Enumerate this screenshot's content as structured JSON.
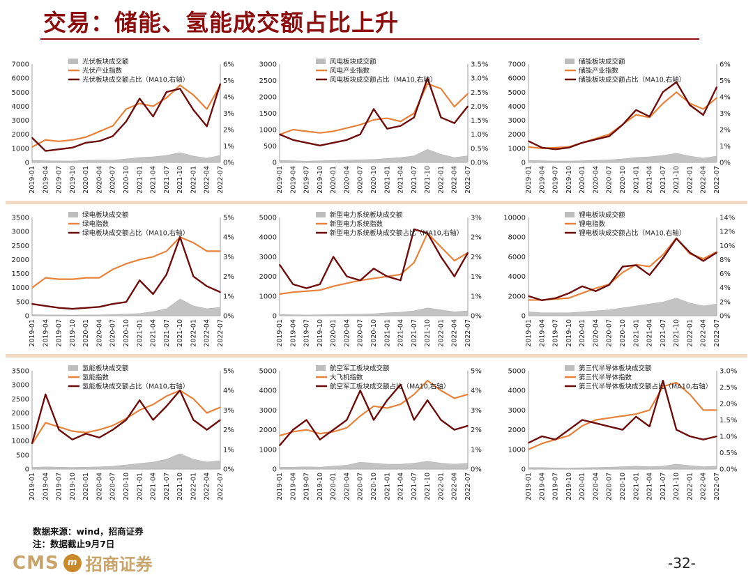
{
  "page": {
    "title": "交易：储能、氢能成交额占比上升",
    "source": "数据来源：wind，招商证券",
    "note": "注：数据截止9月7日",
    "logo_text": "CMS",
    "logo_badge": "m",
    "logo_cn": "招商证券",
    "page_number": "-32-"
  },
  "colors": {
    "title": "#8b0d0d",
    "area": "#bdbdbd",
    "index": "#e8823a",
    "ratio": "#6e0b0b",
    "separator": "#f3d9c2"
  },
  "x_tick_labels": [
    "2019-01",
    "2019-04",
    "2019-07",
    "2019-10",
    "2020-01",
    "2020-04",
    "2020-07",
    "2020-10",
    "2021-01",
    "2021-04",
    "2021-07",
    "2021-10",
    "2022-01",
    "2022-04",
    "2022-07"
  ],
  "chart_data": [
    {
      "type": "line",
      "legend": [
        "光伏板块成交额",
        "光伏产业指数",
        "光伏板块成交额占比（MA10,右轴）"
      ],
      "ylim": [
        0,
        7000
      ],
      "yticks": [
        0,
        1000,
        2000,
        3000,
        4000,
        5000,
        6000,
        7000
      ],
      "ytick_labels": [
        "0",
        "1000",
        "2000",
        "3000",
        "4000",
        "5000",
        "6000",
        "7000"
      ],
      "y2lim": [
        0,
        6
      ],
      "y2ticks": [
        0,
        1,
        2,
        3,
        4,
        5,
        6
      ],
      "y2tick_labels": [
        "0%",
        "1%",
        "2%",
        "3%",
        "4%",
        "5%",
        "6%"
      ],
      "area_values": [
        150,
        120,
        110,
        100,
        150,
        170,
        160,
        250,
        350,
        400,
        500,
        700,
        450,
        300,
        500
      ],
      "index_values": [
        1100,
        1600,
        1500,
        1600,
        1800,
        2200,
        2600,
        3800,
        4200,
        4000,
        4600,
        5500,
        4800,
        3800,
        5500
      ],
      "ratio_values": [
        1.5,
        0.7,
        0.8,
        0.9,
        1.2,
        1.3,
        1.6,
        2.5,
        3.9,
        2.8,
        4.3,
        4.5,
        3.2,
        2.2,
        4.8
      ]
    },
    {
      "type": "line",
      "legend": [
        "风电板块成交额",
        "风电产业指数",
        "风电板块成交额占比（MA10,右轴）"
      ],
      "ylim": [
        0,
        3000
      ],
      "yticks": [
        0,
        500,
        1000,
        1500,
        2000,
        2500,
        3000
      ],
      "ytick_labels": [
        "0",
        "500",
        "1000",
        "1500",
        "2000",
        "2500",
        "3000"
      ],
      "y2lim": [
        0,
        3.5
      ],
      "y2ticks": [
        0,
        0.5,
        1,
        1.5,
        2,
        2.5,
        3,
        3.5
      ],
      "y2tick_labels": [
        "0.0%",
        "0.5%",
        "1.0%",
        "1.5%",
        "2.0%",
        "2.5%",
        "3.0%",
        "3.5%"
      ],
      "area_values": [
        60,
        50,
        40,
        50,
        60,
        70,
        80,
        90,
        120,
        150,
        200,
        400,
        250,
        150,
        200
      ],
      "index_values": [
        850,
        1000,
        950,
        900,
        950,
        1050,
        1150,
        1300,
        1350,
        1250,
        1500,
        2400,
        2250,
        1700,
        2100
      ],
      "ratio_values": [
        1.0,
        0.8,
        0.7,
        0.6,
        0.7,
        0.8,
        1.0,
        1.9,
        1.2,
        1.3,
        1.6,
        3.0,
        1.6,
        1.4,
        2.0
      ]
    },
    {
      "type": "line",
      "legend": [
        "储能板块成交额",
        "储能产业指数",
        "储能板块成交额占比（MA10,右轴）"
      ],
      "ylim": [
        0,
        7000
      ],
      "yticks": [
        0,
        1000,
        2000,
        3000,
        4000,
        5000,
        6000,
        7000
      ],
      "ytick_labels": [
        "0",
        "1000",
        "2000",
        "3000",
        "4000",
        "5000",
        "6000",
        "7000"
      ],
      "y2lim": [
        0,
        6
      ],
      "y2ticks": [
        0,
        1,
        2,
        3,
        4,
        5,
        6
      ],
      "y2tick_labels": [
        "0%",
        "1%",
        "2%",
        "3%",
        "4%",
        "5%",
        "6%"
      ],
      "area_values": [
        150,
        120,
        100,
        100,
        120,
        150,
        180,
        250,
        350,
        400,
        500,
        650,
        450,
        300,
        450
      ],
      "index_values": [
        1100,
        1000,
        1050,
        1100,
        1400,
        1700,
        2000,
        2700,
        3400,
        3200,
        4200,
        5000,
        4200,
        3800,
        4600
      ],
      "ratio_values": [
        1.3,
        0.9,
        0.8,
        0.9,
        1.2,
        1.4,
        1.6,
        2.3,
        3.2,
        2.8,
        4.3,
        4.9,
        3.5,
        2.9,
        4.6
      ]
    },
    {
      "type": "line",
      "legend": [
        "绿电板块成交额",
        "绿电指数",
        "绿电板块成交额占比（MA10,右轴）"
      ],
      "ylim": [
        0,
        3500
      ],
      "yticks": [
        0,
        500,
        1000,
        1500,
        2000,
        2500,
        3000,
        3500
      ],
      "ytick_labels": [
        "0",
        "500",
        "1000",
        "1500",
        "2000",
        "2500",
        "3000",
        "3500"
      ],
      "y2lim": [
        0,
        5
      ],
      "y2ticks": [
        0,
        1,
        2,
        3,
        4,
        5
      ],
      "y2tick_labels": [
        "0%",
        "1%",
        "2%",
        "3%",
        "4%",
        "5%"
      ],
      "area_values": [
        40,
        30,
        30,
        25,
        30,
        30,
        40,
        60,
        80,
        150,
        250,
        600,
        350,
        250,
        300
      ],
      "index_values": [
        1000,
        1350,
        1300,
        1300,
        1350,
        1350,
        1650,
        1850,
        2000,
        2100,
        2300,
        2800,
        2600,
        2300,
        2300
      ],
      "ratio_values": [
        0.6,
        0.5,
        0.4,
        0.35,
        0.4,
        0.45,
        0.6,
        0.7,
        1.8,
        1.1,
        2.1,
        4.0,
        2.0,
        1.5,
        1.2
      ]
    },
    {
      "type": "line",
      "legend": [
        "新型电力系统板块成交额",
        "新型电力系统指数",
        "新型电力系统板块成交额占比（MA10,右轴）"
      ],
      "ylim": [
        0,
        5000
      ],
      "yticks": [
        0,
        1000,
        2000,
        3000,
        4000,
        5000
      ],
      "ytick_labels": [
        "0",
        "1000",
        "2000",
        "3000",
        "4000",
        "5000"
      ],
      "y2lim": [
        0,
        2.5
      ],
      "y2ticks": [
        0,
        0.5,
        1,
        1.5,
        2,
        2.5
      ],
      "y2tick_labels": [
        "0%",
        "1%",
        "1%",
        "2%",
        "2%",
        "3%"
      ],
      "area_values": [
        60,
        50,
        40,
        50,
        60,
        70,
        80,
        100,
        150,
        180,
        250,
        400,
        300,
        200,
        250
      ],
      "index_values": [
        1100,
        1200,
        1250,
        1300,
        1500,
        1650,
        1800,
        1900,
        2000,
        2100,
        2700,
        4200,
        3500,
        2800,
        3200
      ],
      "ratio_values": [
        1.3,
        0.8,
        0.7,
        0.8,
        1.5,
        1.0,
        0.9,
        1.2,
        1.0,
        0.9,
        2.2,
        2.1,
        1.5,
        1.0,
        1.6
      ]
    },
    {
      "type": "line",
      "legend": [
        "锂电板块成交额",
        "锂电指数",
        "锂电板块成交额占比（MA10,右轴）"
      ],
      "ylim": [
        0,
        10000
      ],
      "yticks": [
        0,
        2000,
        4000,
        6000,
        8000,
        10000
      ],
      "ytick_labels": [
        "0",
        "2000",
        "4000",
        "6000",
        "8000",
        "10000"
      ],
      "y2lim": [
        0,
        14
      ],
      "y2ticks": [
        0,
        2,
        4,
        6,
        8,
        10,
        12,
        14
      ],
      "y2tick_labels": [
        "0%",
        "2%",
        "4%",
        "6%",
        "8%",
        "10%",
        "12%",
        "14%"
      ],
      "area_values": [
        400,
        300,
        300,
        300,
        400,
        500,
        600,
        800,
        1000,
        1200,
        1400,
        1800,
        1300,
        1000,
        1200
      ],
      "index_values": [
        1600,
        1600,
        1700,
        1800,
        2300,
        2800,
        3200,
        4400,
        5200,
        5000,
        6200,
        7900,
        6300,
        5800,
        6500
      ],
      "ratio_values": [
        2.8,
        2.2,
        2.5,
        3.2,
        4.2,
        3.5,
        4.4,
        7.0,
        7.2,
        5.8,
        8.2,
        11.0,
        9.0,
        7.8,
        9.0
      ]
    },
    {
      "type": "line",
      "legend": [
        "氢能板块成交额",
        "氢能指数",
        "氢能板块成交额占比（MA10,右轴）"
      ],
      "ylim": [
        0,
        3500
      ],
      "yticks": [
        0,
        500,
        1000,
        1500,
        2000,
        2500,
        3000,
        3500
      ],
      "ytick_labels": [
        "0",
        "500",
        "1000",
        "1500",
        "2000",
        "2500",
        "3000",
        "3500"
      ],
      "y2lim": [
        0,
        5
      ],
      "y2ticks": [
        0,
        1,
        2,
        3,
        4,
        5
      ],
      "y2tick_labels": [
        "0%",
        "1%",
        "2%",
        "3%",
        "4%",
        "5%"
      ],
      "area_values": [
        60,
        80,
        70,
        60,
        70,
        80,
        100,
        150,
        200,
        250,
        350,
        550,
        350,
        250,
        300
      ],
      "index_values": [
        900,
        1650,
        1500,
        1350,
        1300,
        1400,
        1550,
        1800,
        2100,
        2300,
        2600,
        2800,
        2500,
        2000,
        2200
      ],
      "ratio_values": [
        1.3,
        3.8,
        2.0,
        1.5,
        1.8,
        1.6,
        2.0,
        2.5,
        3.5,
        2.5,
        3.2,
        4.0,
        2.5,
        2.0,
        2.5
      ]
    },
    {
      "type": "line",
      "legend": [
        "航空军工板块成交额",
        "大飞机指数",
        "航空军工板块成交额占比（MA10,右轴）"
      ],
      "ylim": [
        0,
        5000
      ],
      "yticks": [
        0,
        1000,
        2000,
        3000,
        4000,
        5000
      ],
      "ytick_labels": [
        "0",
        "1000",
        "2000",
        "3000",
        "4000",
        "5000"
      ],
      "y2lim": [
        0,
        5
      ],
      "y2ticks": [
        0,
        1,
        2,
        3,
        4,
        5
      ],
      "y2tick_labels": [
        "0%",
        "1%",
        "2%",
        "3%",
        "4%",
        "5%"
      ],
      "area_values": [
        100,
        100,
        120,
        100,
        150,
        200,
        350,
        300,
        250,
        250,
        300,
        400,
        300,
        250,
        300
      ],
      "index_values": [
        1700,
        1900,
        2000,
        1800,
        1900,
        2100,
        2700,
        3200,
        3100,
        3300,
        3800,
        4500,
        4000,
        3600,
        3800
      ],
      "ratio_values": [
        1.2,
        2.0,
        2.5,
        1.5,
        2.0,
        2.5,
        4.0,
        2.5,
        3.5,
        4.3,
        2.5,
        3.5,
        2.5,
        2.0,
        2.2
      ]
    },
    {
      "type": "line",
      "legend": [
        "第三代半导体板块成交额",
        "第三代半导体指数",
        "第三代半导体板块成交额占比（MA10,右轴）"
      ],
      "ylim": [
        0,
        5000
      ],
      "yticks": [
        0,
        1000,
        2000,
        3000,
        4000,
        5000
      ],
      "ytick_labels": [
        "0",
        "1000",
        "2000",
        "3000",
        "4000",
        "5000"
      ],
      "y2lim": [
        0,
        3.0
      ],
      "y2ticks": [
        0,
        0.5,
        1,
        1.5,
        2,
        2.5,
        3
      ],
      "y2tick_labels": [
        "0.0%",
        "0.5%",
        "1.0%",
        "1.5%",
        "2.0%",
        "2.5%",
        "3.0%"
      ],
      "area_values": [
        80,
        80,
        60,
        50,
        70,
        80,
        100,
        120,
        150,
        120,
        150,
        250,
        180,
        120,
        150
      ],
      "index_values": [
        1000,
        1300,
        1500,
        1700,
        2200,
        2500,
        2600,
        2700,
        2800,
        3000,
        4200,
        4400,
        3800,
        3000,
        3000
      ],
      "ratio_values": [
        0.8,
        1.0,
        0.9,
        1.2,
        1.5,
        1.4,
        1.3,
        1.2,
        1.6,
        1.3,
        2.7,
        1.2,
        1.0,
        0.9,
        1.0
      ]
    }
  ]
}
